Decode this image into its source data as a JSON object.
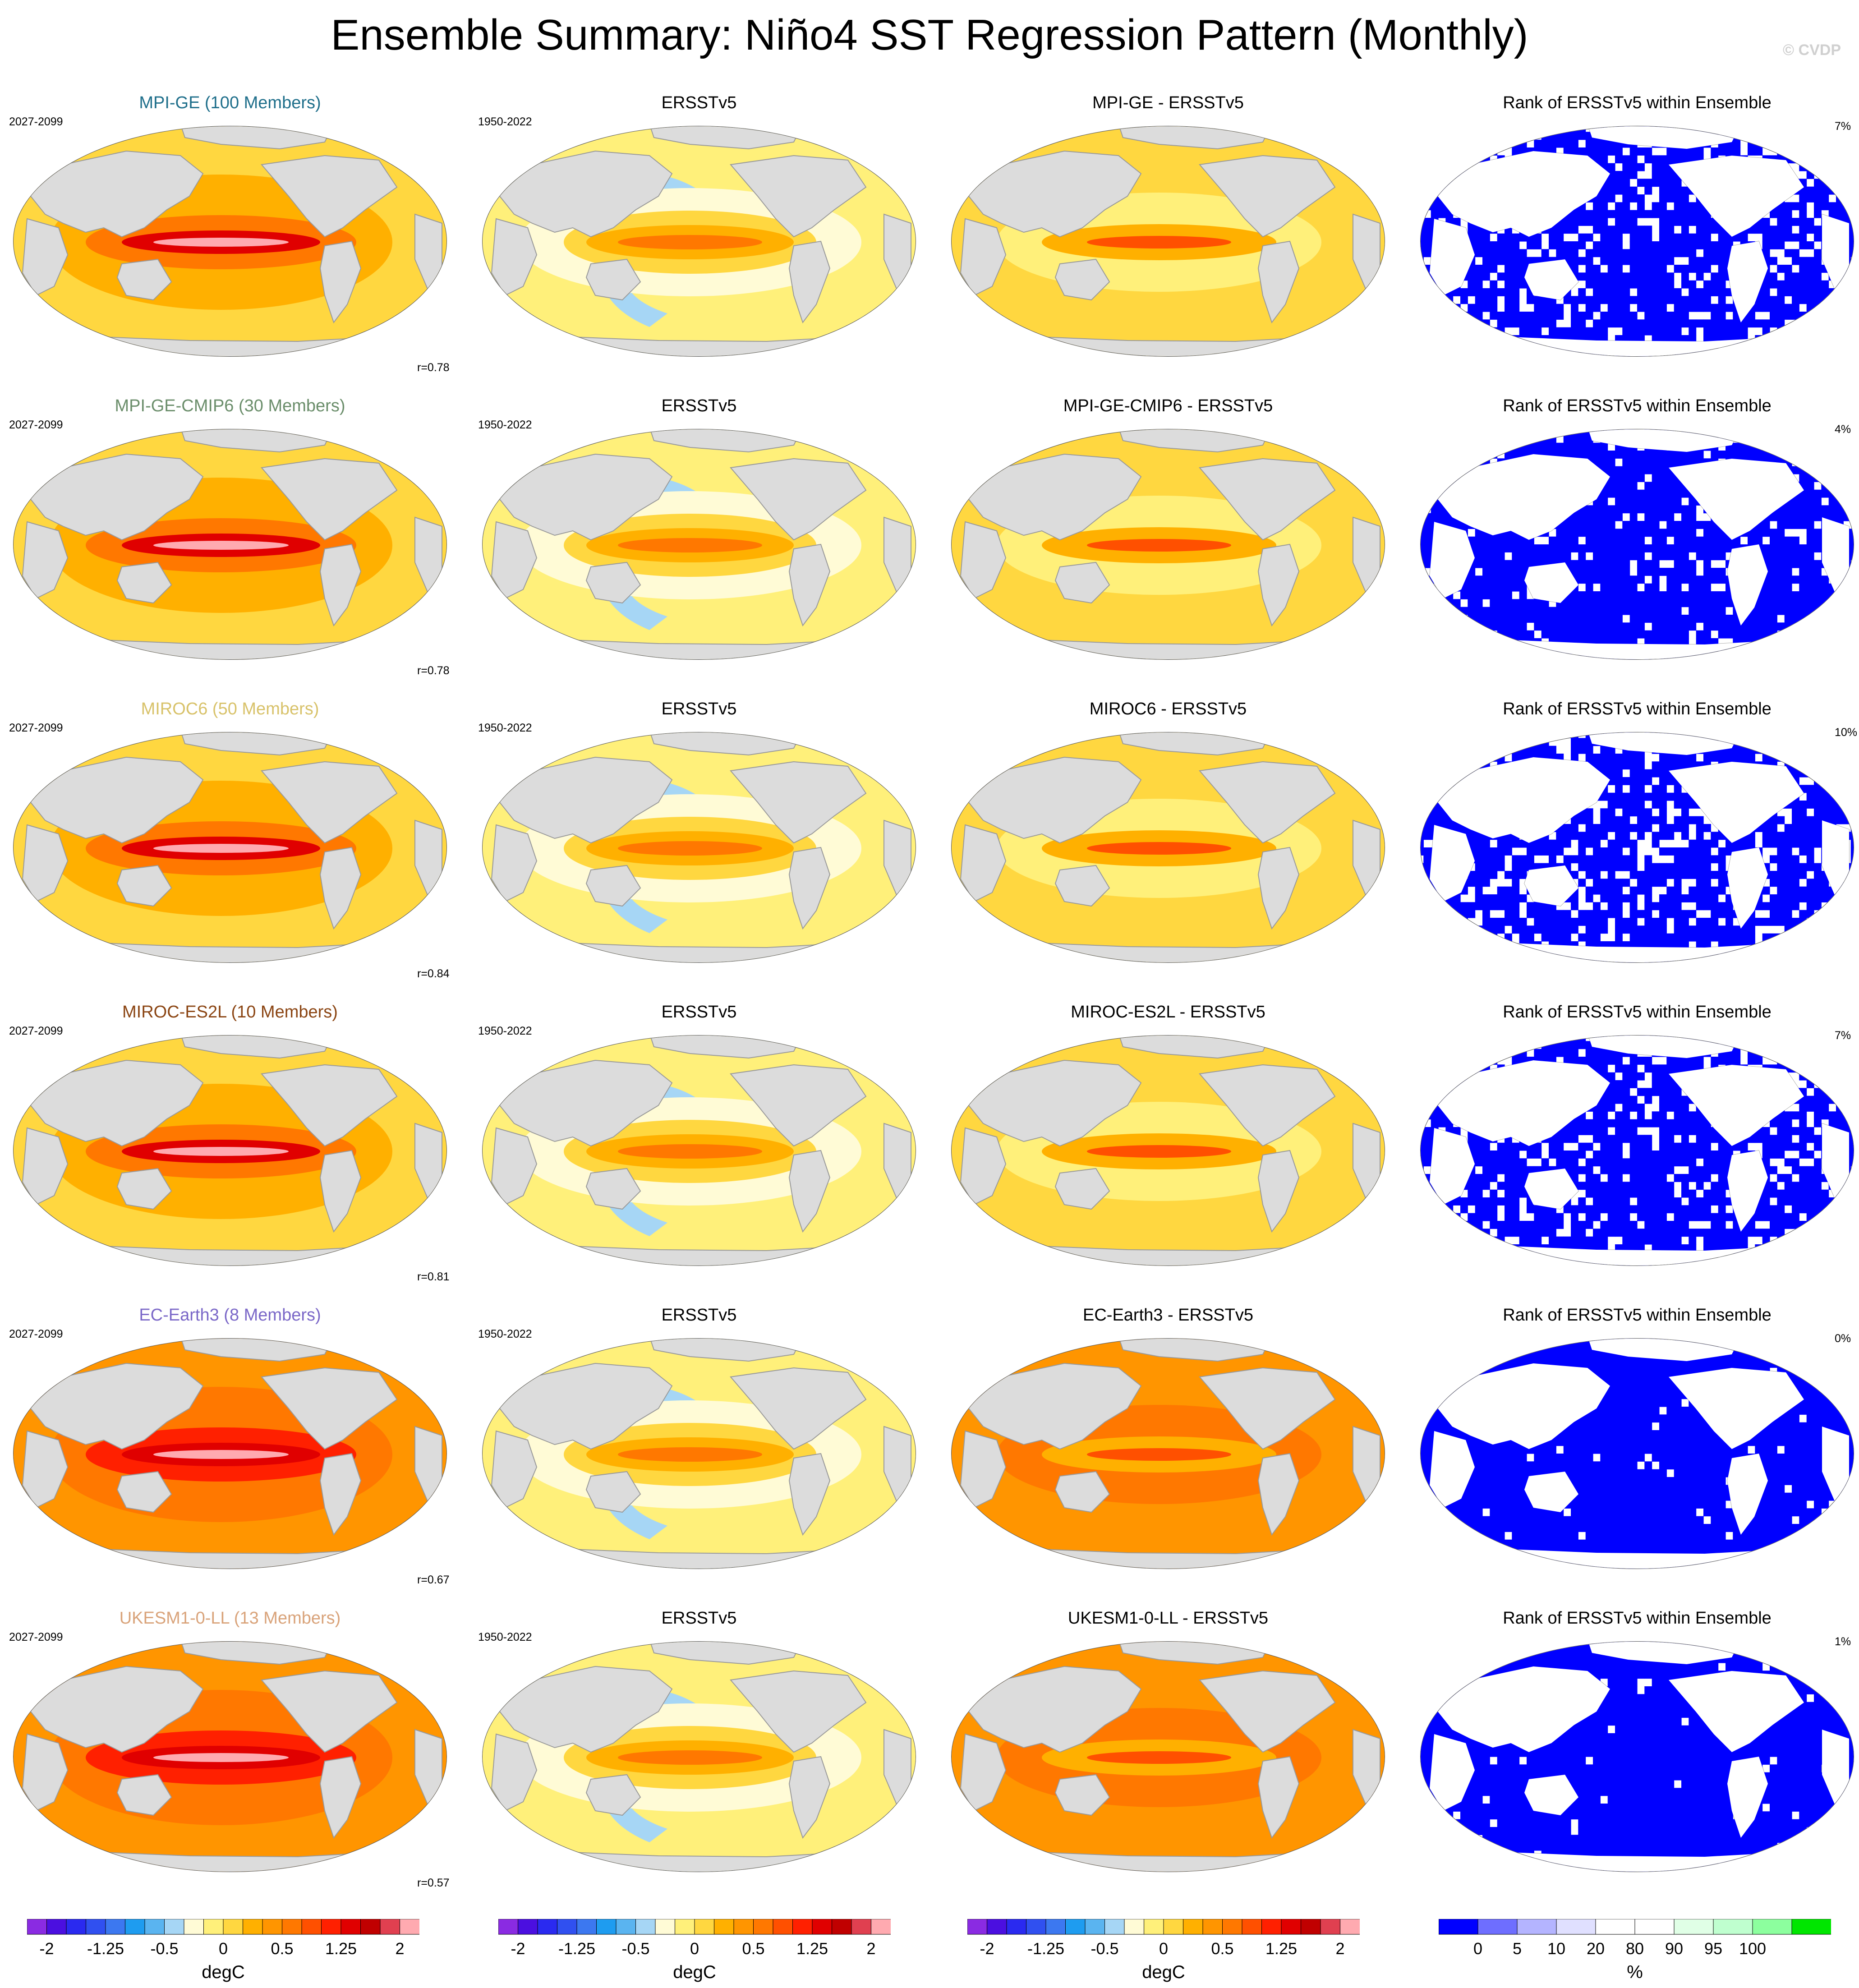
{
  "title": "Ensemble Summary: Niño4 SST Regression Pattern (Monthly)",
  "watermark": "© CVDP",
  "colors": {
    "land": "#dcdcdc",
    "coast": "#9a9a9a",
    "rank_blue": "#0000ff",
    "rank_green": "#00e600"
  },
  "rows": [
    {
      "model": {
        "title": "MPI-GE (100 Members)",
        "color": "#1f6f8b",
        "years": "2027-2099",
        "r": "r=0.78",
        "intensity": 1.0
      },
      "obs": {
        "title": "ERSSTv5",
        "years": "1950-2022"
      },
      "diff": {
        "title": "MPI-GE - ERSSTv5"
      },
      "rank": {
        "title": "Rank of ERSSTv5 within Ensemble",
        "pct": "7%",
        "blue": 0.82
      }
    },
    {
      "model": {
        "title": "MPI-GE-CMIP6 (30 Members)",
        "color": "#6b8e6b",
        "years": "2027-2099",
        "r": "r=0.78",
        "intensity": 1.1
      },
      "obs": {
        "title": "ERSSTv5",
        "years": "1950-2022"
      },
      "diff": {
        "title": "MPI-GE-CMIP6 - ERSSTv5"
      },
      "rank": {
        "title": "Rank of ERSSTv5 within Ensemble",
        "pct": "4%",
        "blue": 0.9
      }
    },
    {
      "model": {
        "title": "MIROC6 (50 Members)",
        "color": "#d8c26a",
        "years": "2027-2099",
        "r": "r=0.84",
        "intensity": 1.15
      },
      "obs": {
        "title": "ERSSTv5",
        "years": "1950-2022"
      },
      "diff": {
        "title": "MIROC6 - ERSSTv5"
      },
      "rank": {
        "title": "Rank of ERSSTv5 within Ensemble",
        "pct": "10%",
        "blue": 0.8
      }
    },
    {
      "model": {
        "title": "MIROC-ES2L (10 Members)",
        "color": "#8b4513",
        "years": "2027-2099",
        "r": "r=0.81",
        "intensity": 1.1
      },
      "obs": {
        "title": "ERSSTv5",
        "years": "1950-2022"
      },
      "diff": {
        "title": "MIROC-ES2L - ERSSTv5"
      },
      "rank": {
        "title": "Rank of ERSSTv5 within Ensemble",
        "pct": "7%",
        "blue": 0.82
      }
    },
    {
      "model": {
        "title": "EC-Earth3 (8 Members)",
        "color": "#7b68c8",
        "years": "2027-2099",
        "r": "r=0.67",
        "intensity": 1.5
      },
      "obs": {
        "title": "ERSSTv5",
        "years": "1950-2022"
      },
      "diff": {
        "title": "EC-Earth3 - ERSSTv5"
      },
      "rank": {
        "title": "Rank of ERSSTv5 within Ensemble",
        "pct": "0%",
        "blue": 0.97
      }
    },
    {
      "model": {
        "title": "UKESM1-0-LL (13 Members)",
        "color": "#d9a37a",
        "years": "2027-2099",
        "r": "r=0.57",
        "intensity": 1.55
      },
      "obs": {
        "title": "ERSSTv5",
        "years": "1950-2022"
      },
      "diff": {
        "title": "UKESM1-0-LL - ERSSTv5"
      },
      "rank": {
        "title": "Rank of ERSSTv5 within Ensemble",
        "pct": "1%",
        "blue": 0.96
      }
    }
  ],
  "colorbar_sst": {
    "colors": [
      "#8a2be2",
      "#4b0fe0",
      "#2a2af0",
      "#3050f0",
      "#3c78f0",
      "#1e9cf0",
      "#5ab4f0",
      "#a6d6f5",
      "#fffbd6",
      "#fff07a",
      "#ffd740",
      "#ffb000",
      "#ff9500",
      "#ff7800",
      "#ff5000",
      "#ff2000",
      "#e00000",
      "#c00000",
      "#e04050",
      "#ffaab0"
    ],
    "ticks": [
      "-2",
      "-1.25",
      "-0.5",
      "0",
      "0.5",
      "1.25",
      "2"
    ],
    "unit": "degC"
  },
  "colorbar_rank": {
    "colors": [
      "#0000ff",
      "#6e6eff",
      "#b4b4ff",
      "#e0e0ff",
      "#ffffff",
      "#ffffff",
      "#e0ffe6",
      "#bfffcf",
      "#8cff9e",
      "#00e600"
    ],
    "ticks": [
      "0",
      "5",
      "10",
      "20",
      "80",
      "90",
      "95",
      "100"
    ],
    "unit": "%"
  }
}
